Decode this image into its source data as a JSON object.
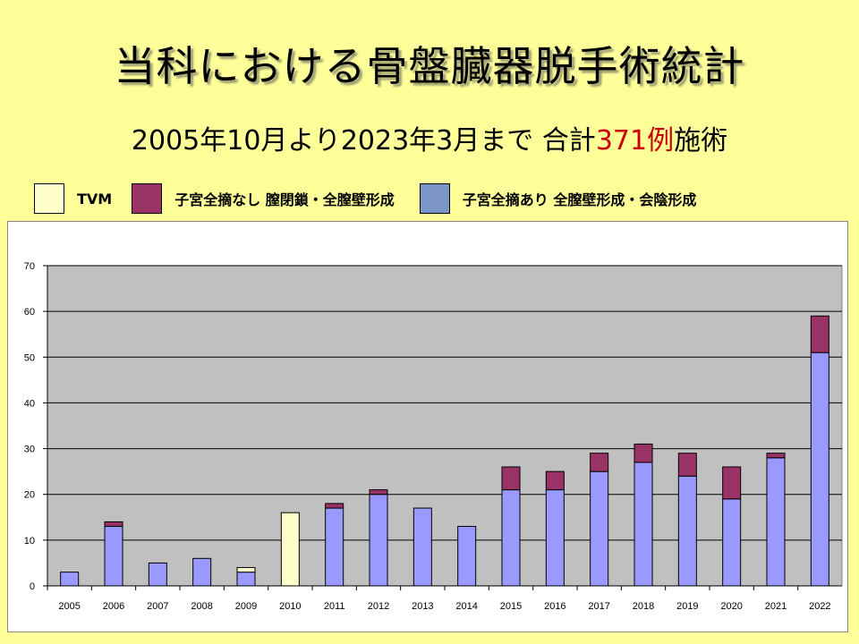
{
  "slide": {
    "title": "当科における骨盤臓器脱手術統計",
    "subtitle_pre": "2005年10月より2023年3月まで  合計",
    "subtitle_count": "371例",
    "subtitle_post": "施術",
    "accent_color": "#cc0000"
  },
  "legend": [
    {
      "label": "TVM",
      "color": "#ffffcc"
    },
    {
      "label": "子宮全摘なし 膣閉鎖・全膣壁形成",
      "color": "#993366"
    },
    {
      "label": "子宮全摘あり 全膣壁形成・会陰形成",
      "color": "#7b96c4"
    }
  ],
  "chart_data": {
    "type": "bar",
    "stacked": true,
    "categories": [
      "2005",
      "2006",
      "2007",
      "2008",
      "2009",
      "2010",
      "2011",
      "2012",
      "2013",
      "2014",
      "2015",
      "2016",
      "2017",
      "2018",
      "2019",
      "2020",
      "2021",
      "2022"
    ],
    "series": [
      {
        "name": "子宮全摘あり 全膣壁形成・会陰形成",
        "color": "#9999ff",
        "values": [
          3,
          13,
          5,
          6,
          3,
          0,
          17,
          20,
          17,
          13,
          21,
          21,
          25,
          27,
          24,
          19,
          28,
          51
        ]
      },
      {
        "name": "子宮全摘なし 膣閉鎖・全膣壁形成",
        "color": "#993366",
        "values": [
          0,
          1,
          0,
          0,
          0,
          0,
          1,
          1,
          0,
          0,
          5,
          4,
          4,
          4,
          5,
          7,
          1,
          8
        ]
      },
      {
        "name": "TVM",
        "color": "#ffffcc",
        "values": [
          0,
          0,
          0,
          0,
          1,
          16,
          0,
          0,
          0,
          0,
          0,
          0,
          0,
          0,
          0,
          0,
          0,
          0
        ]
      }
    ],
    "ylim": [
      0,
      70
    ],
    "yticks": [
      0,
      10,
      20,
      30,
      40,
      50,
      60,
      70
    ],
    "grid": true,
    "plot_background": "#c0c0c0"
  }
}
